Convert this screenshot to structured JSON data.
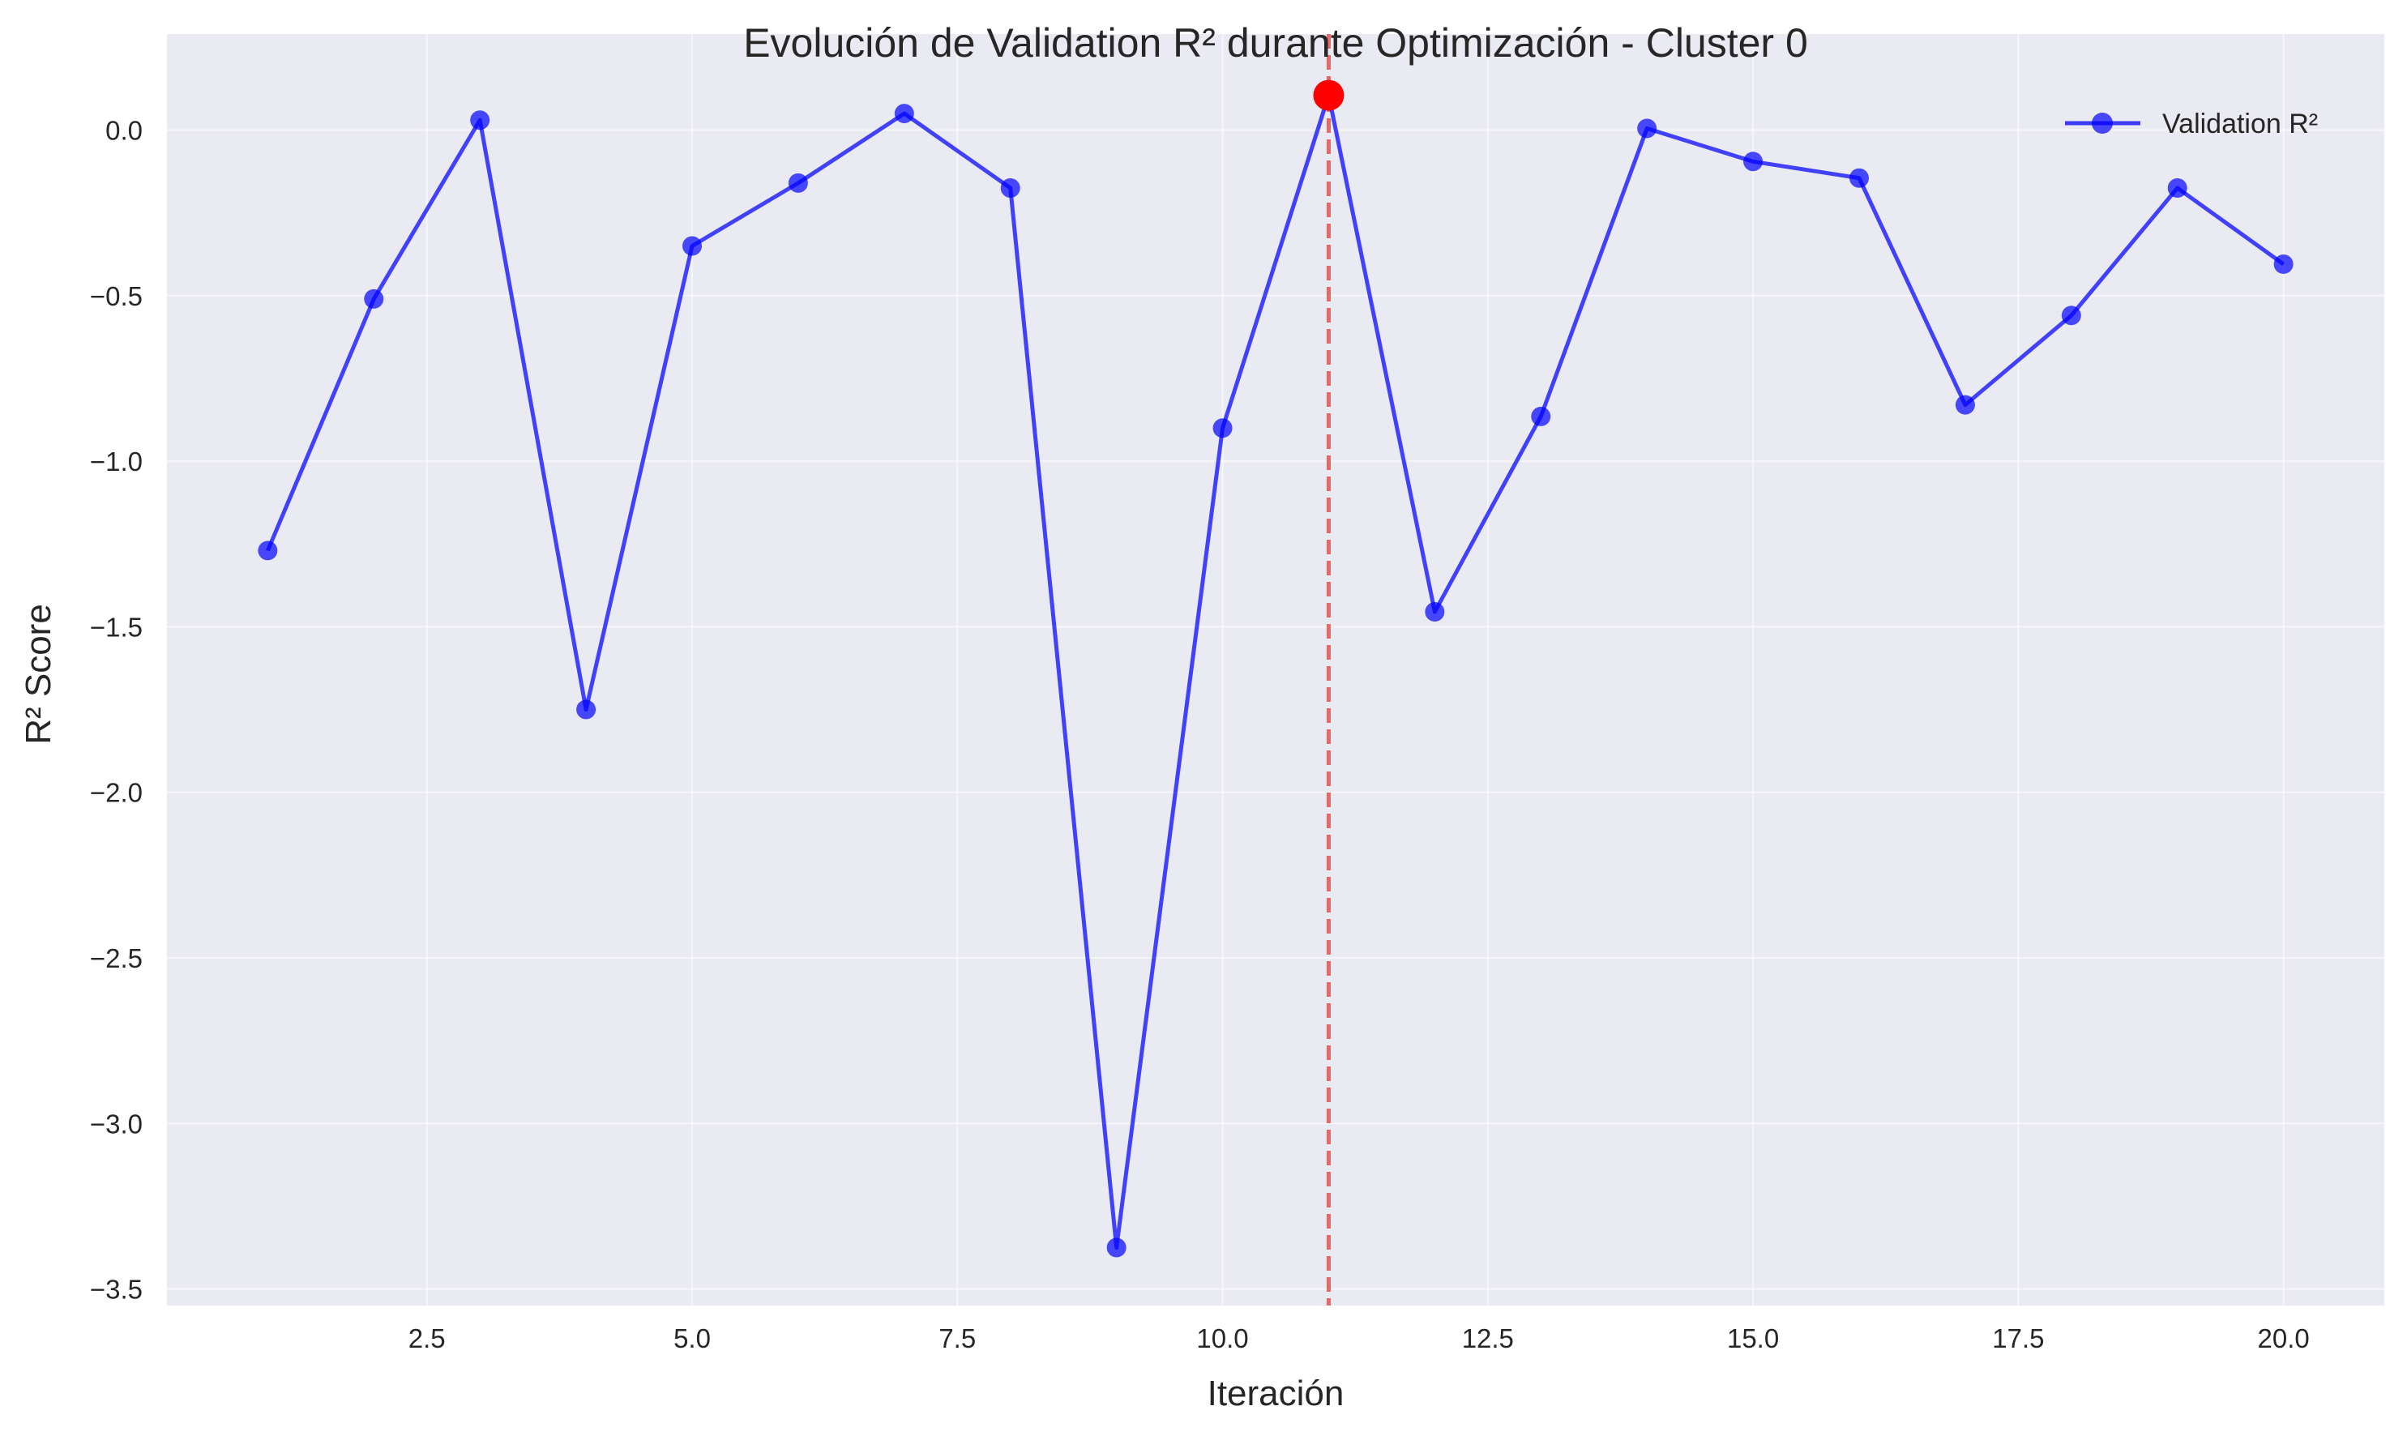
{
  "chart_data": {
    "type": "line",
    "title": "Evolución de Validation R² durante Optimización - Cluster 0",
    "xlabel": "Iteración",
    "ylabel": "R² Score",
    "xlim": [
      0.05,
      20.95
    ],
    "ylim": [
      -3.55,
      0.29
    ],
    "xticks": [
      2.5,
      5.0,
      7.5,
      10.0,
      12.5,
      15.0,
      17.5,
      20.0
    ],
    "xtick_labels": [
      "2.5",
      "5.0",
      "7.5",
      "10.0",
      "12.5",
      "15.0",
      "17.5",
      "20.0"
    ],
    "yticks": [
      0.0,
      -0.5,
      -1.0,
      -1.5,
      -2.0,
      -2.5,
      -3.0,
      -3.5
    ],
    "ytick_labels": [
      "0.0",
      "−0.5",
      "−1.0",
      "−1.5",
      "−2.0",
      "−2.5",
      "−3.0",
      "−3.5"
    ],
    "grid": true,
    "legend_position": "top-right",
    "series": [
      {
        "name": "Validation R²",
        "color": "#0000ff",
        "x": [
          1,
          2,
          3,
          4,
          5,
          6,
          7,
          8,
          9,
          10,
          11,
          12,
          13,
          14,
          15,
          16,
          17,
          18,
          19,
          20
        ],
        "values": [
          -1.27,
          -0.51,
          0.03,
          -1.75,
          -0.35,
          -0.16,
          0.05,
          -0.175,
          -3.375,
          -0.9,
          0.105,
          -1.455,
          -0.865,
          0.005,
          -0.095,
          -0.145,
          -0.83,
          -0.56,
          -0.175,
          -0.405
        ]
      }
    ],
    "best_point": {
      "x": 11,
      "y": 0.105,
      "color": "#ff0000"
    },
    "best_line": {
      "x": 11,
      "color": "#e8504f",
      "style": "dashed"
    }
  }
}
